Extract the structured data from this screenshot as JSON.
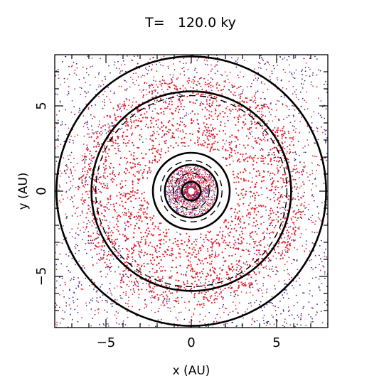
{
  "chart_data": {
    "type": "scatter",
    "title": "T=   120.0 ky",
    "xlabel": "x (AU)",
    "ylabel": "y (AU)",
    "xlim": [
      -8,
      8
    ],
    "ylim": [
      -8,
      8
    ],
    "x_ticks": [
      -5,
      0,
      5
    ],
    "y_ticks": [
      -5,
      0,
      5
    ],
    "x_tick_labels": [
      "−5",
      "0",
      "5"
    ],
    "y_tick_labels": [
      "−5",
      "0",
      "5"
    ],
    "grid": false,
    "colors": {
      "red_particles": "#e8202a",
      "blue_particles": "#2a2a9a",
      "circles": "#000000"
    },
    "circles": [
      {
        "radius": 0.55,
        "style": "solid",
        "weight": "heavy"
      },
      {
        "radius": 1.05,
        "style": "dashed",
        "weight": "normal"
      },
      {
        "radius": 1.55,
        "style": "solid",
        "weight": "heavy"
      },
      {
        "radius": 1.8,
        "style": "dashed",
        "weight": "normal"
      },
      {
        "radius": 2.25,
        "style": "solid",
        "weight": "heavy"
      },
      {
        "radius": 5.6,
        "style": "dashed",
        "weight": "normal"
      },
      {
        "radius": 5.85,
        "style": "solid",
        "weight": "heavy"
      },
      {
        "radius": 7.9,
        "style": "solid",
        "weight": "heavy"
      }
    ]
  }
}
